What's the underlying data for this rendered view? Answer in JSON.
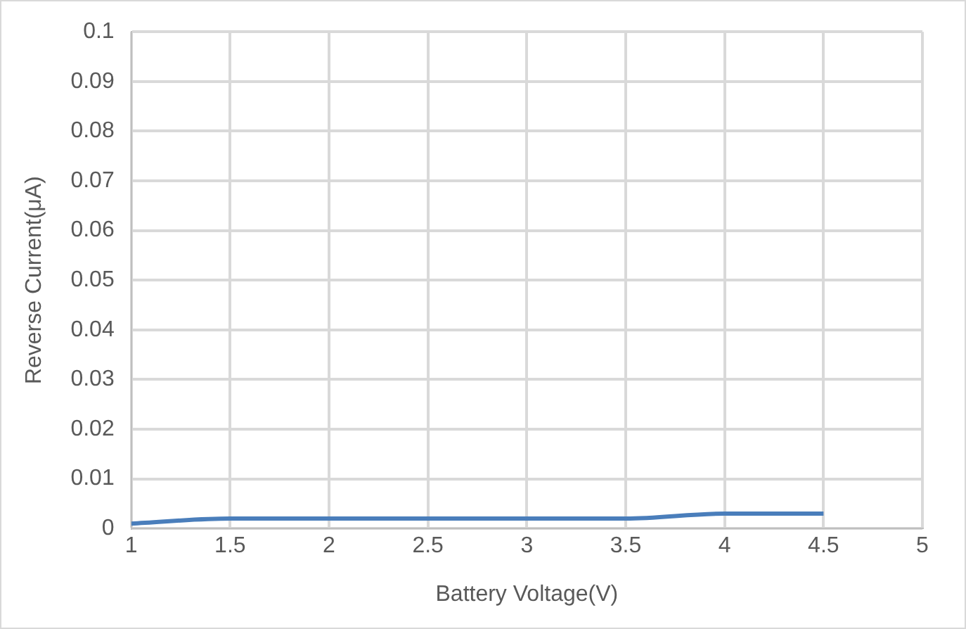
{
  "chart_data": {
    "type": "line",
    "xlabel": "Battery Voltage(V)",
    "ylabel": "Reverse Current(μA)",
    "x": [
      1,
      1.5,
      2,
      2.5,
      3,
      3.5,
      4,
      4.5
    ],
    "series": [
      {
        "color": "#4a7ebb",
        "values": [
          0.001,
          0.002,
          0.002,
          0.002,
          0.002,
          0.002,
          0.003,
          0.003
        ]
      }
    ],
    "xlim": [
      1,
      5
    ],
    "xticks": [
      1,
      1.5,
      2,
      2.5,
      3,
      3.5,
      4,
      4.5,
      5
    ],
    "ylim": [
      0,
      0.1
    ],
    "yticks": [
      0,
      0.01,
      0.02,
      0.03,
      0.04,
      0.05,
      0.06,
      0.07,
      0.08,
      0.09,
      0.1
    ],
    "grid": true,
    "legend": false,
    "marker": "none"
  }
}
